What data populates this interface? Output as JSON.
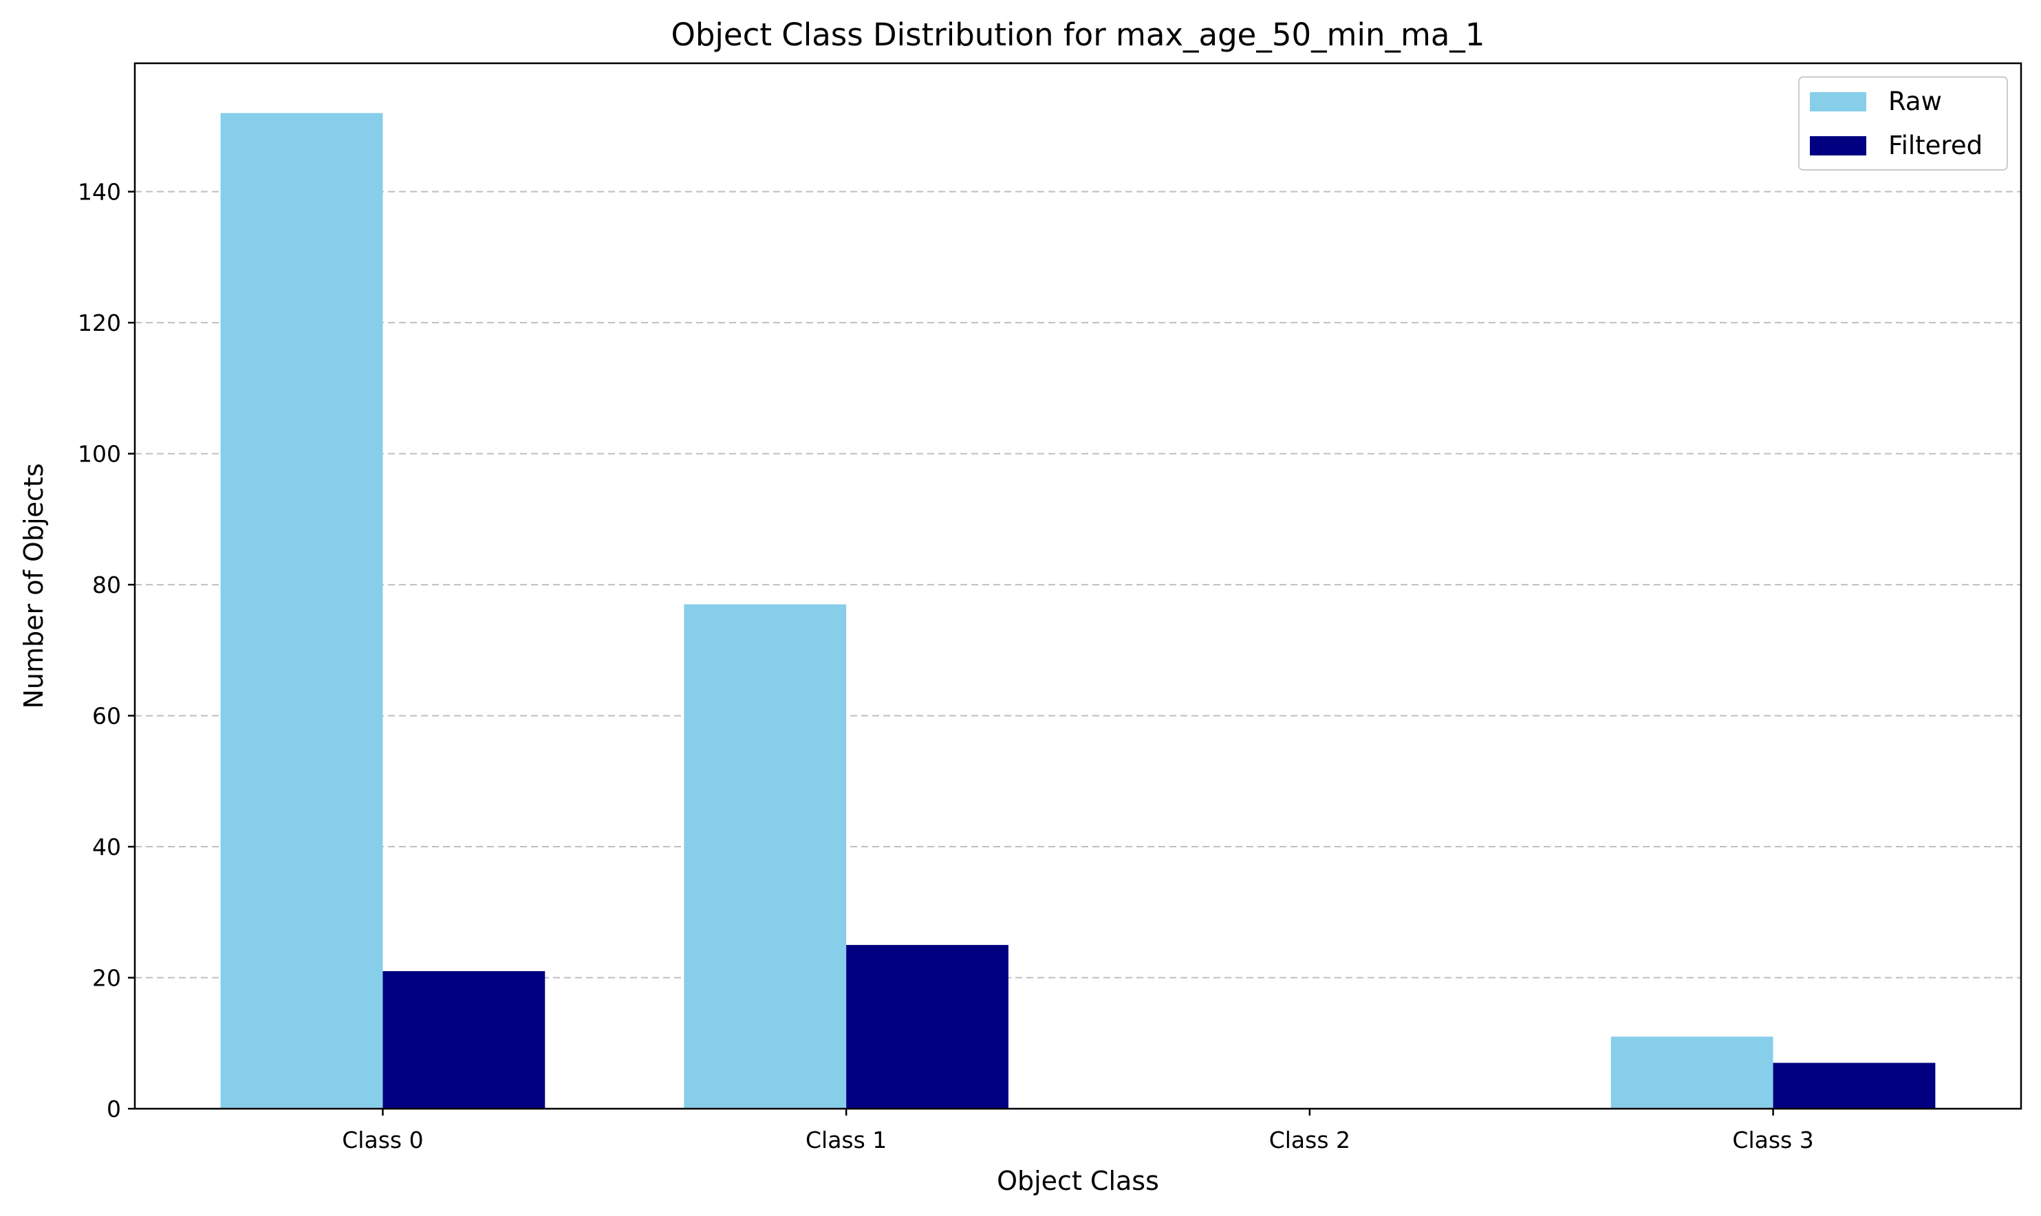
{
  "chart_data": {
    "type": "bar",
    "title": "Object Class Distribution for max_age_50_min_ma_1",
    "xlabel": "Object Class",
    "ylabel": "Number of Objects",
    "categories": [
      "Class 0",
      "Class 1",
      "Class 2",
      "Class 3"
    ],
    "series": [
      {
        "name": "Raw",
        "color": "#87CEEB",
        "values": [
          152,
          77,
          0,
          11
        ]
      },
      {
        "name": "Filtered",
        "color": "#000080",
        "values": [
          21,
          25,
          0,
          7
        ]
      }
    ],
    "ylim": [
      0,
      159.6
    ],
    "yticks": [
      0,
      20,
      40,
      60,
      80,
      100,
      120,
      140
    ],
    "grid": "y-dashed",
    "legend": "top-right"
  }
}
